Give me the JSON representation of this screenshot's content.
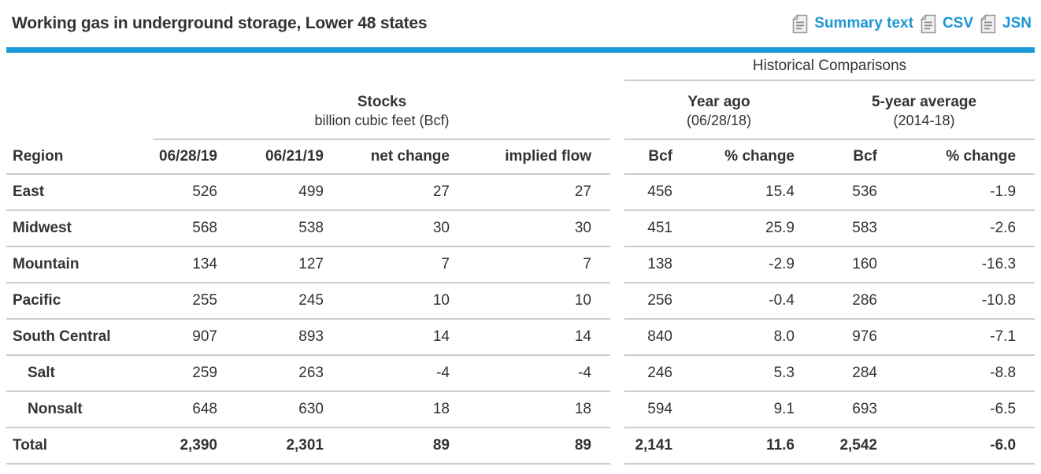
{
  "header": {
    "title": "Working gas in underground storage, Lower 48 states",
    "links": [
      {
        "label": "Summary text",
        "icon": "document-icon"
      },
      {
        "label": "CSV",
        "icon": "document-icon"
      },
      {
        "label": "JSN",
        "icon": "document-icon"
      }
    ]
  },
  "table": {
    "group_header": "Historical Comparisons",
    "stocks_header": {
      "title": "Stocks",
      "subtitle": "billion cubic feet (Bcf)"
    },
    "year_ago_header": {
      "title": "Year ago",
      "subtitle": "(06/28/18)"
    },
    "five_year_header": {
      "title": "5-year average",
      "subtitle": "(2014-18)"
    },
    "columns": [
      "Region",
      "06/28/19",
      "06/21/19",
      "net change",
      "implied flow",
      "Bcf",
      "% change",
      "Bcf",
      "% change"
    ],
    "rows": [
      {
        "region": "East",
        "indent": false,
        "total": false,
        "values": [
          "526",
          "499",
          "27",
          "27",
          "456",
          "15.4",
          "536",
          "-1.9"
        ]
      },
      {
        "region": "Midwest",
        "indent": false,
        "total": false,
        "values": [
          "568",
          "538",
          "30",
          "30",
          "451",
          "25.9",
          "583",
          "-2.6"
        ]
      },
      {
        "region": "Mountain",
        "indent": false,
        "total": false,
        "values": [
          "134",
          "127",
          "7",
          "7",
          "138",
          "-2.9",
          "160",
          "-16.3"
        ]
      },
      {
        "region": "Pacific",
        "indent": false,
        "total": false,
        "values": [
          "255",
          "245",
          "10",
          "10",
          "256",
          "-0.4",
          "286",
          "-10.8"
        ]
      },
      {
        "region": "South Central",
        "indent": false,
        "total": false,
        "values": [
          "907",
          "893",
          "14",
          "14",
          "840",
          "8.0",
          "976",
          "-7.1"
        ]
      },
      {
        "region": "Salt",
        "indent": true,
        "total": false,
        "values": [
          "259",
          "263",
          "-4",
          "-4",
          "246",
          "5.3",
          "284",
          "-8.8"
        ]
      },
      {
        "region": "Nonsalt",
        "indent": true,
        "total": false,
        "values": [
          "648",
          "630",
          "18",
          "18",
          "594",
          "9.1",
          "693",
          "-6.5"
        ]
      },
      {
        "region": "Total",
        "indent": false,
        "total": true,
        "values": [
          "2,390",
          "2,301",
          "89",
          "89",
          "2,141",
          "11.6",
          "2,542",
          "-6.0"
        ]
      }
    ]
  },
  "colors": {
    "accent_blue": "#1d9bd8",
    "link_blue": "#1d96d4",
    "text": "#333333",
    "row_border": "#cccccc"
  }
}
